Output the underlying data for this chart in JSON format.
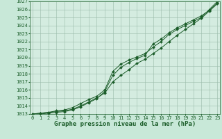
{
  "xlabel": "Graphe pression niveau de la mer (hPa)",
  "background_color": "#c8e8d8",
  "plot_background": "#d4ece0",
  "grid_color": "#99bbaa",
  "line_color": "#1a5c28",
  "ylim_min": 1013,
  "ylim_max": 1027,
  "xlim_min": 0,
  "xlim_max": 23,
  "yticks": [
    1013,
    1014,
    1015,
    1016,
    1017,
    1018,
    1019,
    1020,
    1021,
    1022,
    1023,
    1024,
    1025,
    1026,
    1027
  ],
  "xticks": [
    0,
    1,
    2,
    3,
    4,
    5,
    6,
    7,
    8,
    9,
    10,
    11,
    12,
    13,
    14,
    15,
    16,
    17,
    18,
    19,
    20,
    21,
    22,
    23
  ],
  "line1": [
    1013.0,
    1013.1,
    1013.2,
    1013.4,
    1013.5,
    1013.8,
    1014.3,
    1014.8,
    1015.2,
    1016.0,
    1018.3,
    1019.2,
    1019.7,
    1020.1,
    1020.5,
    1021.3,
    1022.0,
    1022.9,
    1023.5,
    1024.0,
    1024.5,
    1025.0,
    1026.0,
    1027.0
  ],
  "line2": [
    1013.0,
    1013.1,
    1013.2,
    1013.3,
    1013.4,
    1013.6,
    1014.0,
    1014.5,
    1015.0,
    1015.6,
    1017.0,
    1017.8,
    1018.5,
    1019.3,
    1019.8,
    1020.5,
    1021.2,
    1022.0,
    1022.8,
    1023.5,
    1024.2,
    1024.9,
    1025.8,
    1026.7
  ],
  "line3": [
    1013.0,
    1013.0,
    1013.1,
    1013.2,
    1013.3,
    1013.5,
    1013.9,
    1014.4,
    1014.9,
    1015.8,
    1017.8,
    1018.8,
    1019.4,
    1019.9,
    1020.3,
    1021.7,
    1022.3,
    1023.1,
    1023.7,
    1024.2,
    1024.7,
    1025.2,
    1025.9,
    1026.8
  ],
  "tick_fontsize": 5.0,
  "label_fontsize": 6.5,
  "tick_color": "#1a5c28",
  "label_color": "#1a5c28",
  "marker": "D",
  "markersize": 2.0,
  "linewidth": 0.7
}
